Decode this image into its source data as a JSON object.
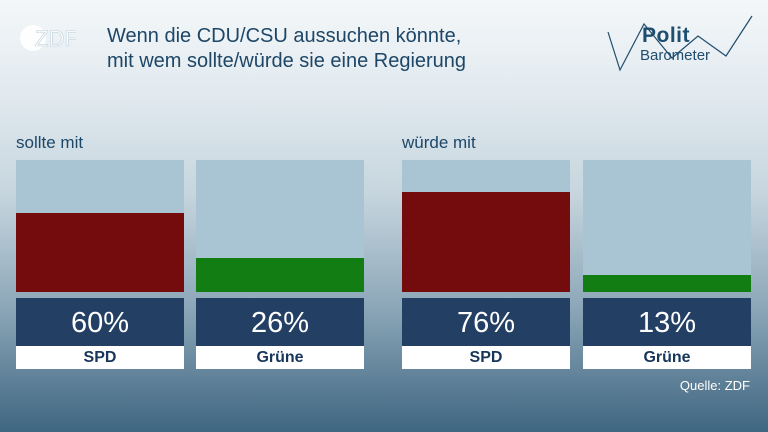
{
  "header": {
    "title_line1": "Wenn die CDU/CSU aussuchen könnte,",
    "title_line2": "mit wem sollte/würde sie eine Regierung",
    "broadcaster": "ZDF",
    "program_part1": "Polit",
    "program_part2": "Barometer"
  },
  "source": "Quelle: ZDF",
  "colors": {
    "SPD": "#740c0e",
    "Grüne": "#127d12",
    "empty_bar": "#a9c4d3",
    "value_box": "#233f64"
  },
  "chart_data": [
    {
      "type": "bar",
      "title": "sollte mit",
      "categories": [
        "SPD",
        "Grüne"
      ],
      "values": [
        60,
        26
      ],
      "value_labels": [
        "60%",
        "26%"
      ],
      "ylim": [
        0,
        100
      ]
    },
    {
      "type": "bar",
      "title": "würde mit",
      "categories": [
        "SPD",
        "Grüne"
      ],
      "values": [
        76,
        13
      ],
      "value_labels": [
        "76%",
        "13%"
      ],
      "ylim": [
        0,
        100
      ]
    }
  ]
}
